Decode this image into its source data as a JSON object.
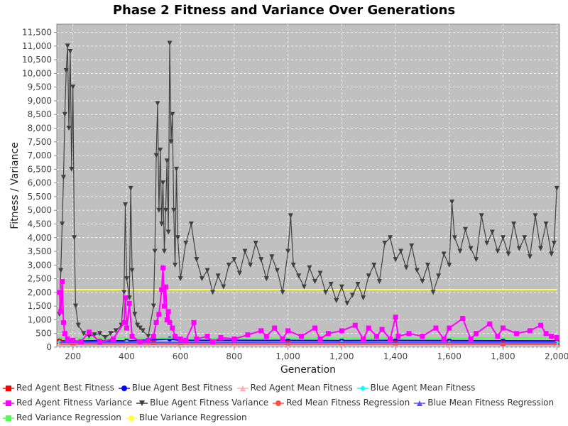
{
  "chart_data": {
    "type": "line",
    "title": "Phase 2 Fitness and Variance Over Generations",
    "xlabel": "Generation",
    "ylabel": "Fitness / Variance",
    "xlim": [
      140,
      2010
    ],
    "ylim": [
      0,
      11800
    ],
    "x_ticks": [
      200,
      400,
      600,
      800,
      1000,
      1200,
      1400,
      1600,
      1800,
      2000
    ],
    "x_tick_labels": [
      "200",
      "400",
      "600",
      "800",
      "1,000",
      "1,200",
      "1,400",
      "1,600",
      "1,800",
      "2,000"
    ],
    "y_ticks": [
      0,
      500,
      1000,
      1500,
      2000,
      2500,
      3000,
      3500,
      4000,
      4500,
      5000,
      5500,
      6000,
      6500,
      7000,
      7500,
      8000,
      8500,
      9000,
      9500,
      10000,
      10500,
      11000,
      11500
    ],
    "y_tick_labels": [
      "0",
      "500",
      "1,000",
      "1,500",
      "2,000",
      "2,500",
      "3,000",
      "3,500",
      "4,000",
      "4,500",
      "5,000",
      "5,500",
      "6,000",
      "6,500",
      "7,000",
      "7,500",
      "8,000",
      "8,500",
      "9,000",
      "9,500",
      "10,000",
      "10,500",
      "11,000",
      "11,500"
    ],
    "grid": true,
    "legend_position": "bottom",
    "x_range": [
      150,
      2000
    ],
    "series": [
      {
        "name": "Red Agent Best Fitness",
        "color": "#ff0000",
        "marker": "square",
        "points": [
          [
            150,
            200
          ],
          [
            200,
            160
          ],
          [
            300,
            170
          ],
          [
            400,
            175
          ],
          [
            500,
            170
          ],
          [
            600,
            165
          ],
          [
            800,
            160
          ],
          [
            1000,
            160
          ],
          [
            1200,
            155
          ],
          [
            1400,
            160
          ],
          [
            1600,
            155
          ],
          [
            1800,
            150
          ],
          [
            2000,
            150
          ]
        ]
      },
      {
        "name": "Blue Agent Best Fitness",
        "color": "#0000ff",
        "marker": "circle",
        "points": [
          [
            150,
            230
          ],
          [
            200,
            220
          ],
          [
            300,
            240
          ],
          [
            400,
            230
          ],
          [
            500,
            270
          ],
          [
            560,
            300
          ],
          [
            600,
            250
          ],
          [
            800,
            250
          ],
          [
            1000,
            245
          ],
          [
            1200,
            240
          ],
          [
            1400,
            245
          ],
          [
            1600,
            240
          ],
          [
            1800,
            235
          ],
          [
            2000,
            230
          ]
        ]
      },
      {
        "name": "Red Agent Mean Fitness",
        "color": "#ffafaf",
        "marker": "triangle-up",
        "points": [
          [
            150,
            120
          ],
          [
            400,
            120
          ],
          [
            800,
            115
          ],
          [
            1200,
            115
          ],
          [
            1600,
            110
          ],
          [
            2000,
            110
          ]
        ]
      },
      {
        "name": "Blue Agent Mean Fitness",
        "color": "#00ffff",
        "marker": "diamond",
        "points": [
          [
            150,
            180
          ],
          [
            400,
            180
          ],
          [
            800,
            175
          ],
          [
            1200,
            175
          ],
          [
            1600,
            170
          ],
          [
            2000,
            170
          ]
        ]
      },
      {
        "name": "Red Agent Fitness Variance",
        "color": "#ff00ff",
        "marker": "square",
        "points": [
          [
            150,
            2000
          ],
          [
            155,
            1300
          ],
          [
            160,
            2400
          ],
          [
            165,
            900
          ],
          [
            170,
            500
          ],
          [
            180,
            300
          ],
          [
            200,
            250
          ],
          [
            230,
            200
          ],
          [
            260,
            550
          ],
          [
            300,
            200
          ],
          [
            350,
            300
          ],
          [
            390,
            900
          ],
          [
            395,
            1800
          ],
          [
            400,
            700
          ],
          [
            410,
            1600
          ],
          [
            420,
            400
          ],
          [
            450,
            200
          ],
          [
            480,
            250
          ],
          [
            500,
            400
          ],
          [
            510,
            900
          ],
          [
            520,
            1200
          ],
          [
            530,
            2100
          ],
          [
            535,
            2900
          ],
          [
            540,
            1500
          ],
          [
            545,
            2200
          ],
          [
            550,
            1000
          ],
          [
            555,
            1300
          ],
          [
            560,
            900
          ],
          [
            570,
            700
          ],
          [
            580,
            400
          ],
          [
            600,
            300
          ],
          [
            620,
            250
          ],
          [
            650,
            900
          ],
          [
            660,
            300
          ],
          [
            700,
            400
          ],
          [
            720,
            200
          ],
          [
            750,
            350
          ],
          [
            800,
            300
          ],
          [
            850,
            450
          ],
          [
            900,
            600
          ],
          [
            920,
            400
          ],
          [
            950,
            700
          ],
          [
            980,
            300
          ],
          [
            1000,
            600
          ],
          [
            1050,
            400
          ],
          [
            1100,
            700
          ],
          [
            1120,
            300
          ],
          [
            1150,
            500
          ],
          [
            1200,
            600
          ],
          [
            1250,
            800
          ],
          [
            1280,
            300
          ],
          [
            1300,
            700
          ],
          [
            1330,
            400
          ],
          [
            1350,
            650
          ],
          [
            1380,
            300
          ],
          [
            1400,
            1100
          ],
          [
            1410,
            400
          ],
          [
            1450,
            500
          ],
          [
            1500,
            400
          ],
          [
            1550,
            700
          ],
          [
            1580,
            300
          ],
          [
            1600,
            700
          ],
          [
            1650,
            1050
          ],
          [
            1680,
            300
          ],
          [
            1700,
            500
          ],
          [
            1750,
            850
          ],
          [
            1780,
            400
          ],
          [
            1800,
            700
          ],
          [
            1850,
            500
          ],
          [
            1900,
            600
          ],
          [
            1940,
            800
          ],
          [
            1960,
            500
          ],
          [
            1980,
            400
          ],
          [
            2000,
            350
          ]
        ]
      },
      {
        "name": "Blue Agent Fitness Variance",
        "color": "#404040",
        "marker": "triangle-down",
        "points": [
          [
            150,
            1200
          ],
          [
            155,
            2800
          ],
          [
            160,
            4500
          ],
          [
            165,
            6200
          ],
          [
            170,
            8500
          ],
          [
            175,
            10100
          ],
          [
            180,
            11000
          ],
          [
            185,
            8000
          ],
          [
            190,
            10800
          ],
          [
            195,
            6500
          ],
          [
            200,
            9500
          ],
          [
            205,
            4000
          ],
          [
            210,
            1500
          ],
          [
            220,
            800
          ],
          [
            240,
            500
          ],
          [
            260,
            400
          ],
          [
            280,
            450
          ],
          [
            300,
            500
          ],
          [
            320,
            350
          ],
          [
            340,
            500
          ],
          [
            360,
            600
          ],
          [
            380,
            800
          ],
          [
            390,
            2000
          ],
          [
            395,
            5200
          ],
          [
            400,
            2500
          ],
          [
            410,
            1800
          ],
          [
            415,
            5800
          ],
          [
            420,
            2800
          ],
          [
            430,
            1200
          ],
          [
            440,
            800
          ],
          [
            450,
            700
          ],
          [
            460,
            600
          ],
          [
            480,
            400
          ],
          [
            500,
            1500
          ],
          [
            505,
            3500
          ],
          [
            510,
            7000
          ],
          [
            515,
            8900
          ],
          [
            520,
            5000
          ],
          [
            525,
            7200
          ],
          [
            530,
            4500
          ],
          [
            535,
            6000
          ],
          [
            540,
            3500
          ],
          [
            545,
            5000
          ],
          [
            550,
            6800
          ],
          [
            555,
            4200
          ],
          [
            560,
            11100
          ],
          [
            565,
            7500
          ],
          [
            570,
            8500
          ],
          [
            575,
            5000
          ],
          [
            580,
            3000
          ],
          [
            585,
            6500
          ],
          [
            590,
            4000
          ],
          [
            600,
            2500
          ],
          [
            620,
            3800
          ],
          [
            640,
            4500
          ],
          [
            660,
            3200
          ],
          [
            680,
            2500
          ],
          [
            700,
            2800
          ],
          [
            720,
            2000
          ],
          [
            740,
            2600
          ],
          [
            760,
            2200
          ],
          [
            780,
            3000
          ],
          [
            800,
            3200
          ],
          [
            820,
            2700
          ],
          [
            840,
            3500
          ],
          [
            860,
            3000
          ],
          [
            880,
            3800
          ],
          [
            900,
            3200
          ],
          [
            920,
            2500
          ],
          [
            940,
            3300
          ],
          [
            960,
            2800
          ],
          [
            980,
            2000
          ],
          [
            1000,
            3500
          ],
          [
            1010,
            4800
          ],
          [
            1020,
            3000
          ],
          [
            1040,
            2600
          ],
          [
            1060,
            2200
          ],
          [
            1080,
            2900
          ],
          [
            1100,
            2400
          ],
          [
            1120,
            2700
          ],
          [
            1140,
            2000
          ],
          [
            1160,
            2300
          ],
          [
            1180,
            1700
          ],
          [
            1200,
            2200
          ],
          [
            1220,
            1600
          ],
          [
            1240,
            1900
          ],
          [
            1260,
            2300
          ],
          [
            1280,
            1800
          ],
          [
            1300,
            2600
          ],
          [
            1320,
            3000
          ],
          [
            1340,
            2400
          ],
          [
            1360,
            3800
          ],
          [
            1380,
            4000
          ],
          [
            1400,
            3200
          ],
          [
            1420,
            3500
          ],
          [
            1440,
            2900
          ],
          [
            1460,
            3700
          ],
          [
            1480,
            2800
          ],
          [
            1500,
            2400
          ],
          [
            1520,
            3000
          ],
          [
            1540,
            2000
          ],
          [
            1560,
            2600
          ],
          [
            1580,
            3400
          ],
          [
            1600,
            3000
          ],
          [
            1610,
            5300
          ],
          [
            1620,
            4000
          ],
          [
            1640,
            3500
          ],
          [
            1660,
            4300
          ],
          [
            1680,
            3600
          ],
          [
            1700,
            3200
          ],
          [
            1720,
            4800
          ],
          [
            1740,
            3800
          ],
          [
            1760,
            4200
          ],
          [
            1780,
            3500
          ],
          [
            1800,
            4000
          ],
          [
            1820,
            3400
          ],
          [
            1840,
            4500
          ],
          [
            1860,
            3600
          ],
          [
            1880,
            4000
          ],
          [
            1900,
            3300
          ],
          [
            1920,
            4800
          ],
          [
            1940,
            3600
          ],
          [
            1960,
            4500
          ],
          [
            1980,
            3400
          ],
          [
            1990,
            3800
          ],
          [
            2000,
            5800
          ]
        ]
      },
      {
        "name": "Red Mean Fitness Regression",
        "color": "#ff5050",
        "marker": "circle",
        "points": [
          [
            150,
            110
          ],
          [
            2000,
            105
          ]
        ]
      },
      {
        "name": "Blue Mean Fitness Regression",
        "color": "#5050ff",
        "marker": "triangle-up",
        "points": [
          [
            150,
            175
          ],
          [
            2000,
            170
          ]
        ]
      },
      {
        "name": "Red Variance Regression",
        "color": "#50ff50",
        "marker": "square",
        "points": [
          [
            150,
            330
          ],
          [
            2000,
            330
          ]
        ]
      },
      {
        "name": "Blue Variance Regression",
        "color": "#ffff40",
        "marker": "circle",
        "points": [
          [
            150,
            2100
          ],
          [
            2000,
            2100
          ]
        ]
      }
    ]
  }
}
